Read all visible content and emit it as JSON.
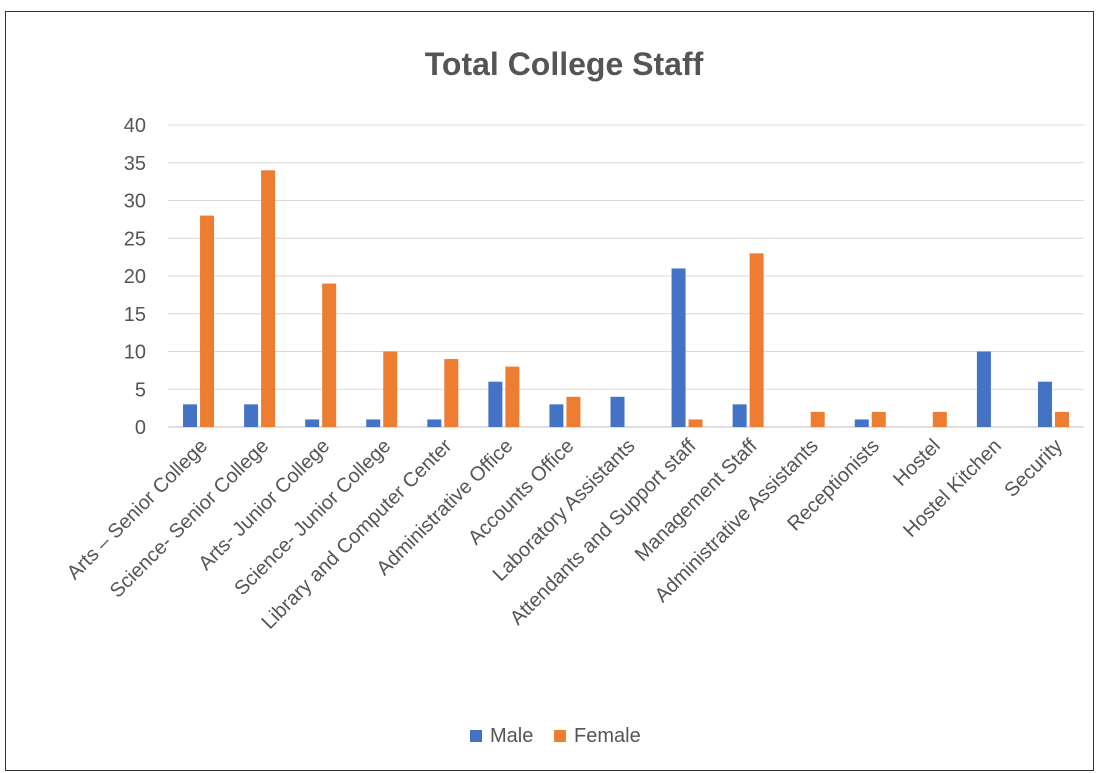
{
  "chart_data": {
    "type": "bar",
    "title": "Total College Staff",
    "categories": [
      "Arts – Senior College",
      "Science- Senior College",
      "Arts- Junior College",
      "Science- Junior College",
      "Library and Computer Center",
      "Administrative Office",
      "Accounts Office",
      "Laboratory Assistants",
      "Attendants and Support staff",
      "Management Staff",
      "Administrative Assistants",
      "Receptionists",
      "Hostel",
      "Hostel Kitchen",
      "Security"
    ],
    "series": [
      {
        "name": "Male",
        "color": "#4472C4",
        "values": [
          3,
          3,
          1,
          1,
          1,
          6,
          3,
          4,
          21,
          3,
          0,
          1,
          0,
          10,
          6
        ]
      },
      {
        "name": "Female",
        "color": "#ED7D31",
        "values": [
          28,
          34,
          19,
          10,
          9,
          8,
          4,
          0,
          1,
          23,
          2,
          2,
          2,
          0,
          2
        ]
      }
    ],
    "ylim": [
      0,
      40
    ],
    "yticks": [
      "0",
      "5",
      "10",
      "15",
      "20",
      "25",
      "30",
      "35",
      "40"
    ],
    "grid": true,
    "legend_position": "bottom"
  }
}
